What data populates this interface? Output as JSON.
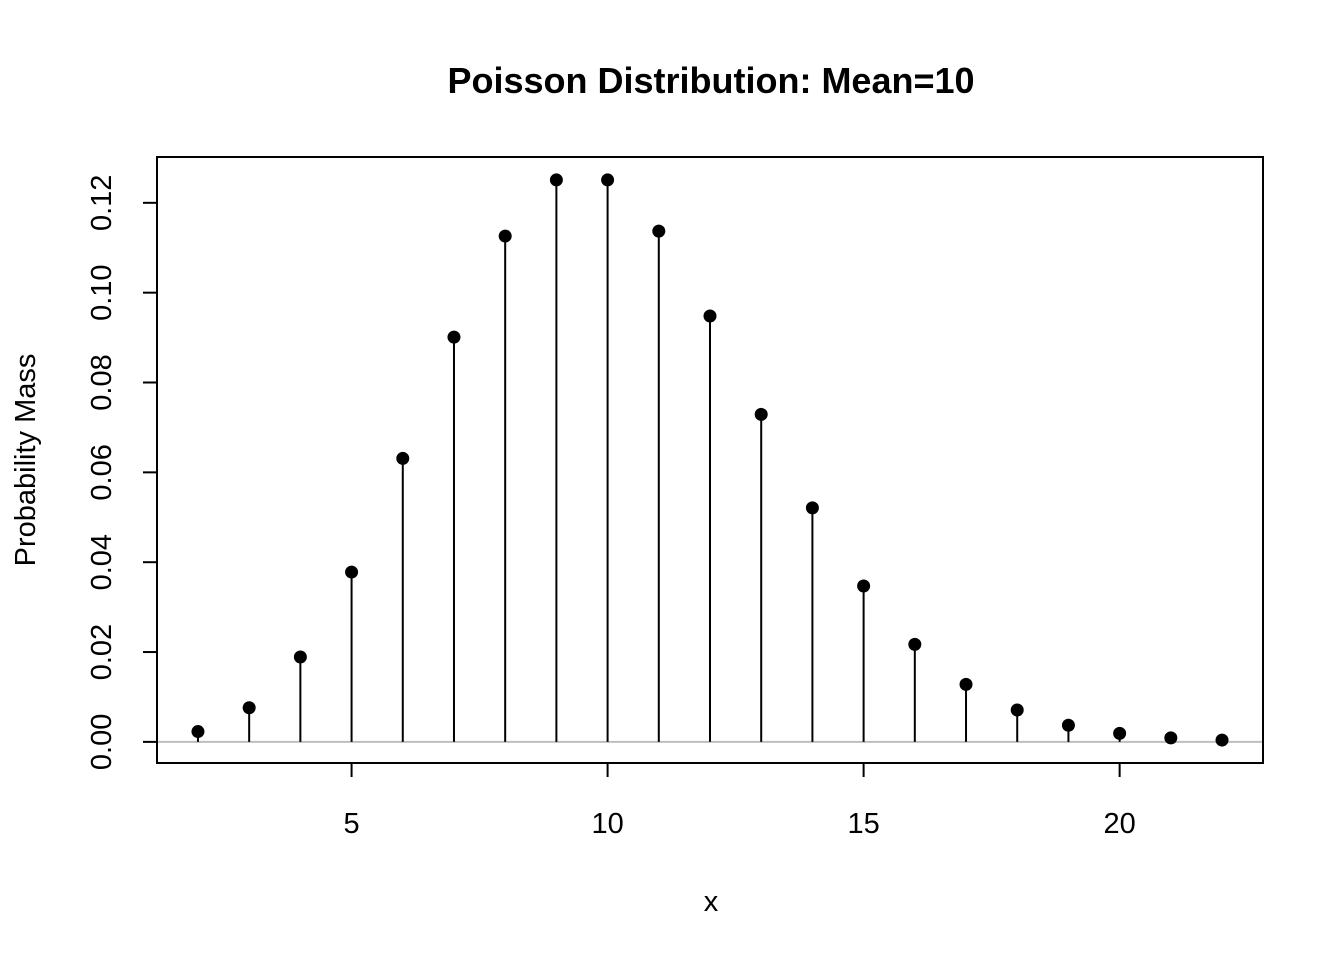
{
  "chart_data": {
    "type": "scatter",
    "style": "stem",
    "title": "Poisson Distribution:  Mean=10",
    "xlabel": "x",
    "ylabel": "Probability Mass",
    "xlim": [
      1.2,
      22.8
    ],
    "ylim": [
      -0.0047,
      0.1302
    ],
    "x_ticks": [
      5,
      10,
      15,
      20
    ],
    "x_tick_labels": [
      "5",
      "10",
      "15",
      "20"
    ],
    "y_ticks": [
      0,
      0.02,
      0.04,
      0.06,
      0.08,
      0.1,
      0.12
    ],
    "y_tick_labels": [
      "0.00",
      "0.02",
      "0.04",
      "0.06",
      "0.08",
      "0.10",
      "0.12"
    ],
    "grid": false,
    "baseline": 0,
    "baseline_color": "#bebebe",
    "point_color": "#000000",
    "series": [
      {
        "x": [
          2,
          3,
          4,
          5,
          6,
          7,
          8,
          9,
          10,
          11,
          12,
          13,
          14,
          15,
          16,
          17,
          18,
          19,
          20,
          21,
          22
        ],
        "y": [
          0.0023,
          0.0076,
          0.0189,
          0.0378,
          0.0631,
          0.0901,
          0.1126,
          0.1251,
          0.1251,
          0.1137,
          0.0948,
          0.0729,
          0.0521,
          0.0347,
          0.0217,
          0.0128,
          0.0071,
          0.0037,
          0.0019,
          0.0009,
          0.0004
        ]
      }
    ]
  }
}
